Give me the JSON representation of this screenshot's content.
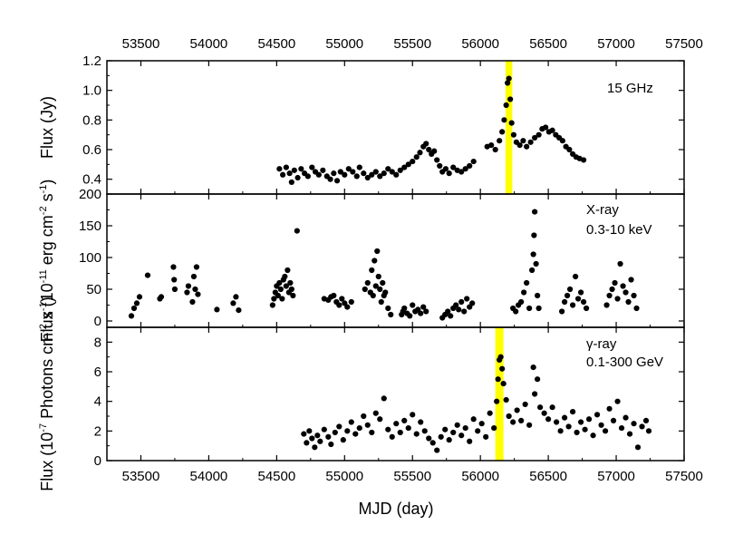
{
  "chart_data": [
    {
      "type": "scatter",
      "panel": "radio",
      "annotation": "15 GHz",
      "ylabel_parts": [
        "Flux (Jy)"
      ],
      "ylim": [
        0.3,
        1.2
      ],
      "yticks": [
        0.4,
        0.6,
        0.8,
        1.0,
        1.2
      ],
      "ytick_labels": [
        "0.4",
        "0.6",
        "0.8",
        "1.0",
        "1.2"
      ],
      "highlight_x": [
        56185,
        56235
      ],
      "points": [
        [
          54520,
          0.47
        ],
        [
          54545,
          0.43
        ],
        [
          54570,
          0.48
        ],
        [
          54595,
          0.44
        ],
        [
          54610,
          0.38
        ],
        [
          54630,
          0.46
        ],
        [
          54655,
          0.41
        ],
        [
          54680,
          0.47
        ],
        [
          54705,
          0.44
        ],
        [
          54730,
          0.42
        ],
        [
          54760,
          0.48
        ],
        [
          54785,
          0.45
        ],
        [
          54810,
          0.43
        ],
        [
          54840,
          0.46
        ],
        [
          54870,
          0.42
        ],
        [
          54895,
          0.4
        ],
        [
          54920,
          0.44
        ],
        [
          54945,
          0.39
        ],
        [
          54970,
          0.45
        ],
        [
          55000,
          0.43
        ],
        [
          55030,
          0.47
        ],
        [
          55060,
          0.45
        ],
        [
          55090,
          0.42
        ],
        [
          55110,
          0.48
        ],
        [
          55140,
          0.44
        ],
        [
          55170,
          0.41
        ],
        [
          55200,
          0.43
        ],
        [
          55230,
          0.45
        ],
        [
          55260,
          0.42
        ],
        [
          55290,
          0.44
        ],
        [
          55320,
          0.47
        ],
        [
          55350,
          0.45
        ],
        [
          55380,
          0.43
        ],
        [
          55410,
          0.46
        ],
        [
          55440,
          0.48
        ],
        [
          55470,
          0.5
        ],
        [
          55500,
          0.52
        ],
        [
          55530,
          0.55
        ],
        [
          55555,
          0.58
        ],
        [
          55580,
          0.62
        ],
        [
          55600,
          0.64
        ],
        [
          55620,
          0.6
        ],
        [
          55640,
          0.57
        ],
        [
          55660,
          0.59
        ],
        [
          55680,
          0.53
        ],
        [
          55700,
          0.49
        ],
        [
          55720,
          0.45
        ],
        [
          55745,
          0.47
        ],
        [
          55770,
          0.44
        ],
        [
          55800,
          0.48
        ],
        [
          55830,
          0.46
        ],
        [
          55860,
          0.45
        ],
        [
          55890,
          0.47
        ],
        [
          55920,
          0.49
        ],
        [
          55950,
          0.52
        ],
        [
          56050,
          0.62
        ],
        [
          56080,
          0.63
        ],
        [
          56110,
          0.6
        ],
        [
          56140,
          0.66
        ],
        [
          56160,
          0.72
        ],
        [
          56175,
          0.8
        ],
        [
          56190,
          0.9
        ],
        [
          56200,
          1.05
        ],
        [
          56210,
          1.08
        ],
        [
          56220,
          0.94
        ],
        [
          56230,
          0.78
        ],
        [
          56245,
          0.7
        ],
        [
          56265,
          0.65
        ],
        [
          56290,
          0.63
        ],
        [
          56315,
          0.66
        ],
        [
          56340,
          0.62
        ],
        [
          56370,
          0.65
        ],
        [
          56400,
          0.68
        ],
        [
          56430,
          0.7
        ],
        [
          56455,
          0.74
        ],
        [
          56480,
          0.75
        ],
        [
          56505,
          0.72
        ],
        [
          56530,
          0.73
        ],
        [
          56555,
          0.7
        ],
        [
          56580,
          0.68
        ],
        [
          56605,
          0.66
        ],
        [
          56630,
          0.62
        ],
        [
          56655,
          0.6
        ],
        [
          56680,
          0.57
        ],
        [
          56705,
          0.55
        ],
        [
          56730,
          0.54
        ],
        [
          56760,
          0.53
        ]
      ]
    },
    {
      "type": "scatter",
      "panel": "xray",
      "annotation_lines": [
        "X-ray",
        "0.3-10 keV"
      ],
      "ylabel_parts": [
        "Flux (10",
        "-11",
        " erg cm",
        "-2",
        " s",
        "-1",
        ")"
      ],
      "ylim": [
        -10,
        200
      ],
      "yticks": [
        0,
        50,
        100,
        150,
        200
      ],
      "ytick_labels": [
        "0",
        "50",
        "100",
        "150",
        "200"
      ],
      "points": [
        [
          53430,
          8
        ],
        [
          53450,
          20
        ],
        [
          53470,
          28
        ],
        [
          53490,
          38
        ],
        [
          53550,
          72
        ],
        [
          53640,
          35
        ],
        [
          53650,
          38
        ],
        [
          53740,
          85
        ],
        [
          53745,
          65
        ],
        [
          53750,
          50
        ],
        [
          53840,
          45
        ],
        [
          53850,
          55
        ],
        [
          53880,
          30
        ],
        [
          53890,
          70
        ],
        [
          53900,
          50
        ],
        [
          53910,
          85
        ],
        [
          53920,
          42
        ],
        [
          54060,
          18
        ],
        [
          54180,
          28
        ],
        [
          54200,
          38
        ],
        [
          54220,
          17
        ],
        [
          54470,
          25
        ],
        [
          54480,
          35
        ],
        [
          54490,
          45
        ],
        [
          54500,
          55
        ],
        [
          54510,
          40
        ],
        [
          54520,
          60
        ],
        [
          54530,
          50
        ],
        [
          54540,
          35
        ],
        [
          54550,
          65
        ],
        [
          54560,
          70
        ],
        [
          54570,
          55
        ],
        [
          54580,
          80
        ],
        [
          54590,
          45
        ],
        [
          54600,
          60
        ],
        [
          54610,
          50
        ],
        [
          54620,
          40
        ],
        [
          54650,
          142
        ],
        [
          54850,
          35
        ],
        [
          54880,
          33
        ],
        [
          54900,
          38
        ],
        [
          54920,
          40
        ],
        [
          54940,
          30
        ],
        [
          54960,
          25
        ],
        [
          54980,
          35
        ],
        [
          55000,
          28
        ],
        [
          55020,
          22
        ],
        [
          55050,
          30
        ],
        [
          55150,
          50
        ],
        [
          55170,
          60
        ],
        [
          55190,
          45
        ],
        [
          55200,
          80
        ],
        [
          55210,
          40
        ],
        [
          55220,
          95
        ],
        [
          55230,
          55
        ],
        [
          55240,
          110
        ],
        [
          55250,
          70
        ],
        [
          55260,
          50
        ],
        [
          55270,
          30
        ],
        [
          55280,
          60
        ],
        [
          55290,
          40
        ],
        [
          55300,
          45
        ],
        [
          55320,
          20
        ],
        [
          55340,
          10
        ],
        [
          55420,
          10
        ],
        [
          55430,
          15
        ],
        [
          55440,
          20
        ],
        [
          55460,
          12
        ],
        [
          55480,
          8
        ],
        [
          55500,
          25
        ],
        [
          55520,
          15
        ],
        [
          55540,
          18
        ],
        [
          55560,
          12
        ],
        [
          55580,
          22
        ],
        [
          55600,
          15
        ],
        [
          55720,
          5
        ],
        [
          55740,
          10
        ],
        [
          55760,
          15
        ],
        [
          55780,
          8
        ],
        [
          55800,
          20
        ],
        [
          55820,
          25
        ],
        [
          55840,
          18
        ],
        [
          55860,
          30
        ],
        [
          55880,
          15
        ],
        [
          55900,
          35
        ],
        [
          55920,
          22
        ],
        [
          55940,
          28
        ],
        [
          56240,
          20
        ],
        [
          56260,
          15
        ],
        [
          56280,
          25
        ],
        [
          56300,
          30
        ],
        [
          56320,
          45
        ],
        [
          56340,
          60
        ],
        [
          56360,
          20
        ],
        [
          56380,
          80
        ],
        [
          56390,
          105
        ],
        [
          56395,
          135
        ],
        [
          56400,
          172
        ],
        [
          56410,
          90
        ],
        [
          56420,
          40
        ],
        [
          56430,
          20
        ],
        [
          56600,
          15
        ],
        [
          56620,
          30
        ],
        [
          56640,
          40
        ],
        [
          56660,
          50
        ],
        [
          56680,
          25
        ],
        [
          56700,
          70
        ],
        [
          56720,
          35
        ],
        [
          56740,
          45
        ],
        [
          56760,
          30
        ],
        [
          56780,
          20
        ],
        [
          56930,
          25
        ],
        [
          56950,
          40
        ],
        [
          56970,
          50
        ],
        [
          56990,
          60
        ],
        [
          57010,
          35
        ],
        [
          57030,
          90
        ],
        [
          57050,
          55
        ],
        [
          57070,
          45
        ],
        [
          57090,
          30
        ],
        [
          57110,
          65
        ],
        [
          57130,
          40
        ],
        [
          57150,
          20
        ]
      ]
    },
    {
      "type": "scatter",
      "panel": "gamma",
      "annotation_lines": [
        "γ-ray",
        "0.1-300 GeV"
      ],
      "ylabel_parts": [
        "Flux (10",
        "-7",
        " Photons cm",
        "-2",
        " s",
        "-1",
        ")"
      ],
      "ylim": [
        0,
        9
      ],
      "yticks": [
        0,
        2,
        4,
        6,
        8
      ],
      "ytick_labels": [
        "0",
        "2",
        "4",
        "6",
        "8"
      ],
      "highlight_x": [
        56110,
        56170
      ],
      "points": [
        [
          54700,
          1.8
        ],
        [
          54720,
          1.2
        ],
        [
          54740,
          2.0
        ],
        [
          54760,
          1.5
        ],
        [
          54780,
          0.9
        ],
        [
          54800,
          1.7
        ],
        [
          54820,
          1.3
        ],
        [
          54850,
          2.1
        ],
        [
          54880,
          1.6
        ],
        [
          54900,
          1.1
        ],
        [
          54930,
          1.9
        ],
        [
          54960,
          2.3
        ],
        [
          54990,
          1.4
        ],
        [
          55020,
          2.0
        ],
        [
          55050,
          2.6
        ],
        [
          55080,
          1.8
        ],
        [
          55110,
          2.2
        ],
        [
          55140,
          3.0
        ],
        [
          55170,
          2.4
        ],
        [
          55200,
          1.9
        ],
        [
          55230,
          3.2
        ],
        [
          55260,
          2.8
        ],
        [
          55290,
          4.2
        ],
        [
          55320,
          2.1
        ],
        [
          55350,
          1.6
        ],
        [
          55380,
          2.5
        ],
        [
          55410,
          1.9
        ],
        [
          55440,
          2.7
        ],
        [
          55470,
          2.2
        ],
        [
          55500,
          3.1
        ],
        [
          55530,
          1.8
        ],
        [
          55560,
          2.6
        ],
        [
          55590,
          2.0
        ],
        [
          55620,
          1.5
        ],
        [
          55650,
          1.2
        ],
        [
          55680,
          0.7
        ],
        [
          55710,
          1.6
        ],
        [
          55740,
          2.1
        ],
        [
          55770,
          1.4
        ],
        [
          55800,
          1.9
        ],
        [
          55830,
          2.4
        ],
        [
          55860,
          1.7
        ],
        [
          55890,
          2.2
        ],
        [
          55920,
          1.3
        ],
        [
          55950,
          2.8
        ],
        [
          55980,
          2.0
        ],
        [
          56010,
          2.5
        ],
        [
          56040,
          1.6
        ],
        [
          56070,
          3.2
        ],
        [
          56100,
          2.2
        ],
        [
          56120,
          4.0
        ],
        [
          56130,
          5.5
        ],
        [
          56140,
          6.8
        ],
        [
          56150,
          7.0
        ],
        [
          56160,
          6.2
        ],
        [
          56170,
          5.2
        ],
        [
          56190,
          4.1
        ],
        [
          56210,
          3.0
        ],
        [
          56240,
          2.6
        ],
        [
          56270,
          3.4
        ],
        [
          56300,
          2.7
        ],
        [
          56330,
          3.8
        ],
        [
          56360,
          2.4
        ],
        [
          56390,
          6.3
        ],
        [
          56400,
          4.5
        ],
        [
          56420,
          5.5
        ],
        [
          56440,
          3.6
        ],
        [
          56470,
          3.2
        ],
        [
          56500,
          2.8
        ],
        [
          56530,
          3.6
        ],
        [
          56560,
          2.6
        ],
        [
          56590,
          2.0
        ],
        [
          56620,
          2.9
        ],
        [
          56650,
          2.3
        ],
        [
          56680,
          3.3
        ],
        [
          56710,
          1.9
        ],
        [
          56740,
          2.6
        ],
        [
          56770,
          2.1
        ],
        [
          56800,
          2.8
        ],
        [
          56830,
          1.7
        ],
        [
          56860,
          3.1
        ],
        [
          56890,
          2.4
        ],
        [
          56920,
          2.0
        ],
        [
          56950,
          3.5
        ],
        [
          56980,
          2.7
        ],
        [
          57010,
          4.0
        ],
        [
          57040,
          2.2
        ],
        [
          57070,
          2.9
        ],
        [
          57100,
          1.8
        ],
        [
          57130,
          2.5
        ],
        [
          57160,
          0.9
        ],
        [
          57190,
          2.3
        ],
        [
          57220,
          2.7
        ],
        [
          57240,
          2.0
        ]
      ]
    }
  ],
  "x_axis": {
    "label": "MJD (day)",
    "range": [
      53250,
      57500
    ],
    "ticks": [
      53500,
      54000,
      54500,
      55000,
      55500,
      56000,
      56500,
      57000,
      57500
    ],
    "tick_labels": [
      "53500",
      "54000",
      "54500",
      "55000",
      "55500",
      "56000",
      "56500",
      "57000",
      "57500"
    ]
  },
  "colors": {
    "highlight": "#ffff00",
    "marker": "#000000"
  }
}
